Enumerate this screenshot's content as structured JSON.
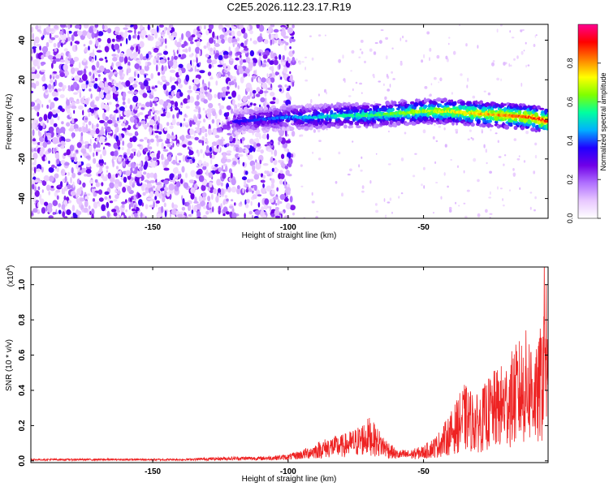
{
  "page": {
    "title": "C2E5.2026.112.23.17.R19"
  },
  "chart_data": [
    {
      "type": "heatmap",
      "title": "C2E5.2026.112.23.17.R19",
      "xlabel": "Height of straight line (km)",
      "ylabel": "Frequency (Hz)",
      "xlim": [
        -195,
        -4
      ],
      "ylim": [
        -50,
        48
      ],
      "xticks": [
        -150,
        -100,
        -50
      ],
      "xtick_labels": [
        "-150",
        "-100",
        "-50"
      ],
      "yticks": [
        -40,
        -20,
        0,
        20,
        40
      ],
      "ytick_labels": [
        "-40",
        "-20",
        "0",
        "20",
        "40"
      ],
      "ridge": {
        "x": [
          -118,
          -110,
          -100,
          -90,
          -80,
          -70,
          -60,
          -50,
          -40,
          -30,
          -20,
          -10,
          -4
        ],
        "y": [
          -1,
          0,
          1,
          1,
          2,
          2,
          3,
          4,
          4,
          3,
          2,
          1,
          -1
        ]
      },
      "noise_region": {
        "x_range": [
          -195,
          -98
        ],
        "y_range": [
          -50,
          48
        ]
      },
      "colorbar": {
        "label": "Normalized spectral amplitude",
        "range": [
          0.0,
          1.0
        ],
        "ticks": [
          0.0,
          0.2,
          0.4,
          0.6,
          0.8
        ],
        "tick_labels": [
          "0.0",
          "0.2",
          "0.4",
          "0.6",
          "0.8"
        ],
        "colormap": [
          "#ffffff",
          "#e8c8ff",
          "#b070ff",
          "#7000e8",
          "#2000ff",
          "#00b0ff",
          "#00ffa0",
          "#80ff00",
          "#ffff00",
          "#ff8000",
          "#ff0000",
          "#ff0090"
        ]
      },
      "grid": false,
      "legend": "none"
    },
    {
      "type": "line",
      "xlabel": "Height of straight line (km)",
      "ylabel": "SNR (10 * v/v)",
      "multiplier": "(x10",
      "multiplier_exp": "4",
      "multiplier_close": ")",
      "xlim": [
        -195,
        -4
      ],
      "ylim": [
        -0.01,
        1.1
      ],
      "xticks": [
        -150,
        -100,
        -50
      ],
      "xtick_labels": [
        "-150",
        "-100",
        "-50"
      ],
      "yticks": [
        0.0,
        0.2,
        0.4,
        0.6,
        0.8,
        1.0
      ],
      "ytick_labels": [
        "0.0",
        "0.2",
        "0.4",
        "0.6",
        "0.8",
        "1.0"
      ],
      "series": [
        {
          "color": "#ee2222",
          "x": [
            -195,
            -180,
            -160,
            -140,
            -130,
            -120,
            -110,
            -100,
            -95,
            -90,
            -85,
            -80,
            -75,
            -70,
            -65,
            -60,
            -55,
            -50,
            -45,
            -40,
            -35,
            -30,
            -25,
            -20,
            -15,
            -12,
            -10,
            -8,
            -6,
            -5,
            -4
          ],
          "y": [
            0.01,
            0.01,
            0.01,
            0.01,
            0.015,
            0.02,
            0.02,
            0.03,
            0.05,
            0.08,
            0.11,
            0.12,
            0.15,
            0.2,
            0.12,
            0.05,
            0.05,
            0.07,
            0.12,
            0.22,
            0.35,
            0.3,
            0.4,
            0.45,
            0.55,
            0.6,
            0.58,
            0.5,
            0.7,
            1.1,
            0.4
          ]
        }
      ],
      "grid": false,
      "legend": "none"
    }
  ]
}
